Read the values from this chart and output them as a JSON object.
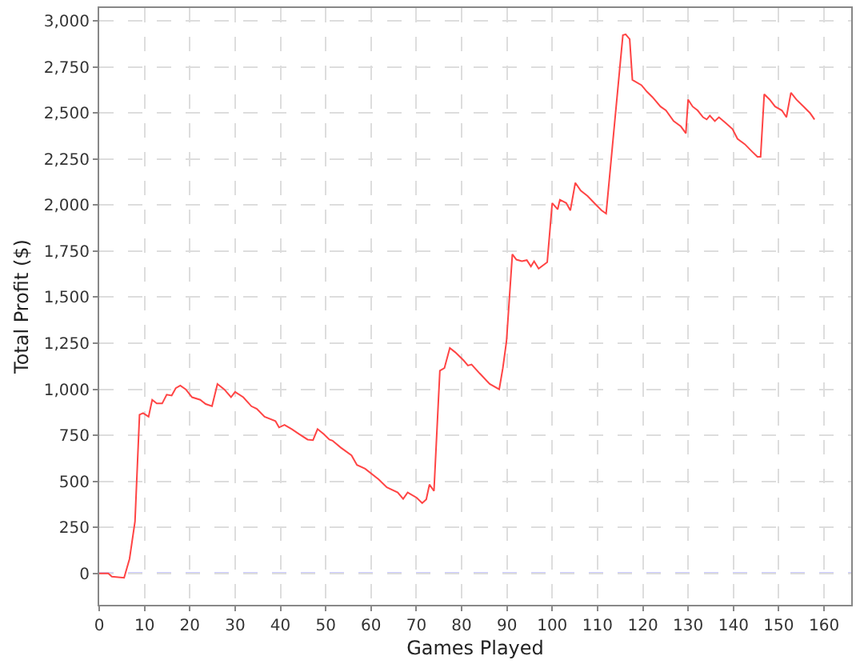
{
  "chart_data": {
    "type": "line",
    "xlabel": "Games Played",
    "ylabel": "Total Profit ($)",
    "xlim": [
      0,
      166
    ],
    "xticks": [
      0,
      10,
      20,
      30,
      40,
      50,
      60,
      70,
      80,
      90,
      100,
      110,
      120,
      130,
      140,
      150,
      160
    ],
    "ylim": [
      -170,
      3070
    ],
    "yticks": [
      {
        "value": 0,
        "label": "0"
      },
      {
        "value": 250,
        "label": "250"
      },
      {
        "value": 500,
        "label": "500"
      },
      {
        "value": 750,
        "label": "750"
      },
      {
        "value": 1000,
        "label": "1,000"
      },
      {
        "value": 1250,
        "label": "1,250"
      },
      {
        "value": 1500,
        "label": "1,500"
      },
      {
        "value": 1750,
        "label": "1,750"
      },
      {
        "value": 2000,
        "label": "2,000"
      },
      {
        "value": 2250,
        "label": "2,250"
      },
      {
        "value": 2500,
        "label": "2,500"
      },
      {
        "value": 2750,
        "label": "2,750"
      },
      {
        "value": 3000,
        "label": "3,000"
      }
    ],
    "grid": true,
    "marker": "none",
    "line_style": "solid",
    "ref_lines": [
      {
        "axis": "y",
        "value": 0,
        "color": "#3333ff",
        "line_style": "dashed"
      }
    ],
    "series": [
      {
        "color": "#ff4444",
        "x": [
          0,
          2.0,
          2.8,
          5.5,
          6.7,
          7.9,
          8.9,
          9.7,
          10.9,
          11.7,
          12.7,
          13.9,
          14.9,
          16.0,
          16.9,
          17.9,
          19.1,
          20.5,
          22.3,
          23.5,
          24.9,
          26.1,
          27.6,
          29.1,
          30.0,
          31.8,
          33.6,
          34.8,
          36.5,
          38.9,
          39.7,
          40.9,
          42.5,
          44.2,
          46.0,
          47.2,
          48.2,
          49.6,
          50.8,
          51.5,
          53.3,
          55.7,
          56.9,
          58.7,
          61.7,
          63.5,
          65.9,
          67.1,
          68.1,
          70.1,
          71.3,
          72.2,
          72.9,
          73.9,
          75.2,
          76.2,
          77.4,
          78.6,
          80.4,
          81.4,
          82.2,
          84.0,
          86.2,
          88.3,
          89.1,
          89.9,
          91.2,
          92.1,
          93.3,
          94.4,
          95.3,
          96.0,
          97.0,
          98.9,
          100.0,
          101.2,
          101.7,
          103.1,
          104.0,
          105.1,
          106.3,
          107.8,
          109.5,
          110.9,
          111.9,
          113.3,
          115.6,
          116.2,
          117.1,
          117.7,
          119.7,
          120.9,
          122.1,
          123.9,
          125.1,
          126.8,
          128.4,
          129.5,
          130.0,
          131.0,
          132.1,
          133.3,
          134.1,
          134.8,
          135.9,
          136.8,
          138.2,
          139.8,
          140.9,
          142.5,
          144.1,
          145.3,
          146.0,
          146.8,
          148.0,
          149.2,
          150.7,
          151.7,
          152.7,
          153.9,
          155.5,
          156.9,
          157.9
        ],
        "values": [
          0,
          0,
          -17,
          -23,
          80,
          282,
          862,
          871,
          851,
          943,
          923,
          923,
          971,
          966,
          1006,
          1020,
          1000,
          957,
          943,
          920,
          908,
          1029,
          1000,
          957,
          986,
          957,
          908,
          894,
          851,
          828,
          793,
          807,
          784,
          756,
          727,
          724,
          784,
          756,
          727,
          721,
          684,
          641,
          589,
          569,
          511,
          468,
          440,
          405,
          440,
          411,
          382,
          402,
          483,
          448,
          1101,
          1115,
          1224,
          1201,
          1158,
          1129,
          1135,
          1086,
          1029,
          1000,
          1115,
          1259,
          1733,
          1704,
          1695,
          1701,
          1667,
          1695,
          1655,
          1690,
          2011,
          1977,
          2029,
          2011,
          1971,
          2121,
          2078,
          2049,
          2006,
          1971,
          1954,
          2322,
          2922,
          2927,
          2901,
          2680,
          2651,
          2616,
          2587,
          2535,
          2514,
          2456,
          2427,
          2390,
          2573,
          2535,
          2514,
          2477,
          2465,
          2486,
          2456,
          2477,
          2448,
          2413,
          2360,
          2331,
          2291,
          2262,
          2262,
          2602,
          2573,
          2535,
          2514,
          2477,
          2610,
          2573,
          2535,
          2500,
          2465
        ]
      }
    ]
  }
}
